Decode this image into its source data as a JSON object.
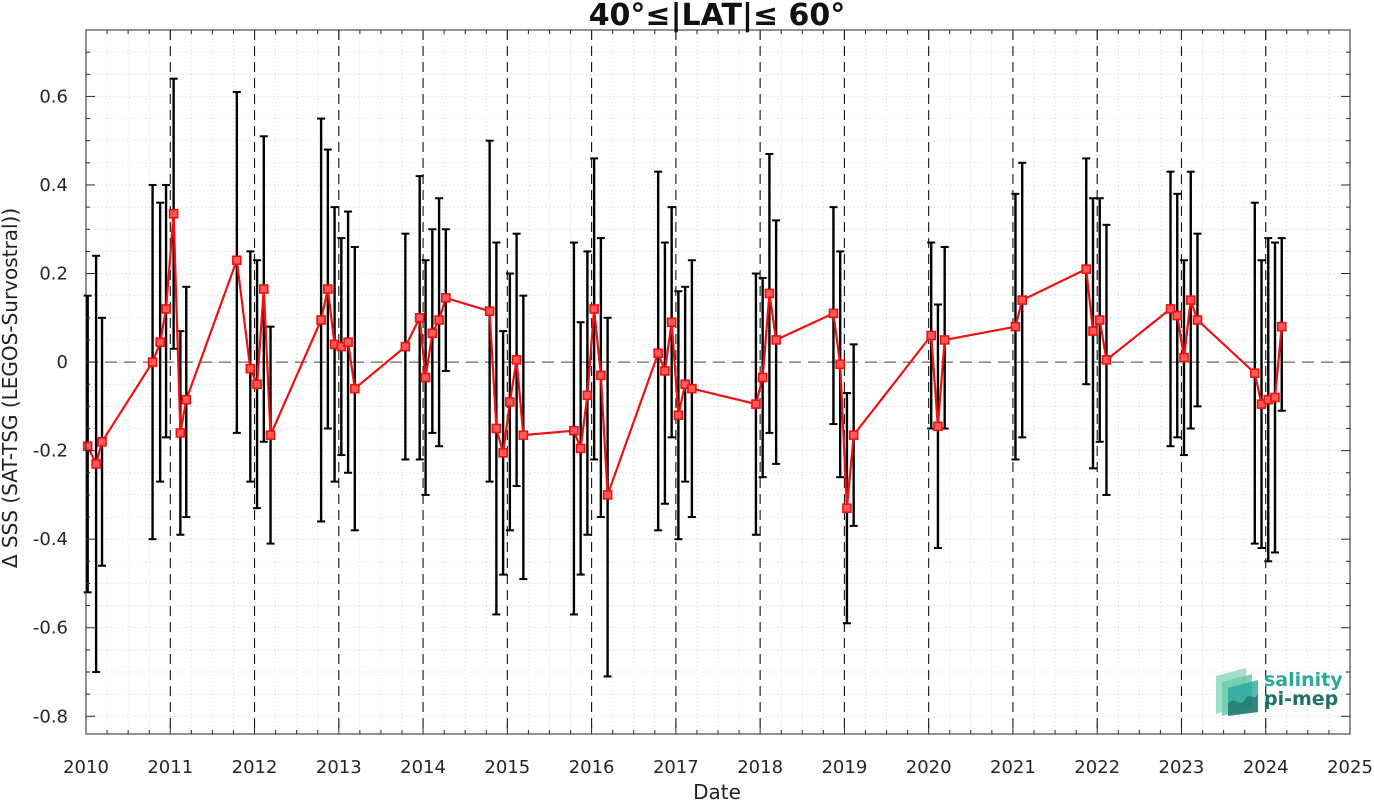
{
  "chart_data": {
    "type": "line",
    "title": "40°≤|LAT|≤ 60°",
    "xlabel": "Date",
    "ylabel": "Δ SSS (SAT-TSG (LEGOS-Survostral))",
    "xlim": [
      2010,
      2025
    ],
    "ylim": [
      -0.84,
      0.75
    ],
    "x_ticks": [
      "2010",
      "2011",
      "2012",
      "2013",
      "2014",
      "2015",
      "2016",
      "2017",
      "2018",
      "2019",
      "2020",
      "2021",
      "2022",
      "2023",
      "2024",
      "2025"
    ],
    "y_ticks": [
      "0.6",
      "0.4",
      "0.2",
      "0",
      "-0.2",
      "-0.4",
      "-0.6",
      "-0.8"
    ],
    "y_tick_values": [
      0.6,
      0.4,
      0.2,
      0,
      -0.2,
      -0.4,
      -0.6,
      -0.8
    ],
    "grid": true,
    "reference_line": 0,
    "year_boundaries": [
      2011,
      2012,
      2013,
      2014,
      2015,
      2016,
      2017,
      2018,
      2019,
      2020,
      2021,
      2022,
      2023,
      2024
    ],
    "series": [
      {
        "color": "#ee1111",
        "marker": "square",
        "points": [
          {
            "x": 2010.02,
            "y": -0.19,
            "low": -0.52,
            "high": 0.15
          },
          {
            "x": 2010.12,
            "y": -0.23,
            "low": -0.7,
            "high": 0.24
          },
          {
            "x": 2010.19,
            "y": -0.18,
            "low": -0.46,
            "high": 0.1
          },
          {
            "x": 2010.79,
            "y": 0.0,
            "low": -0.4,
            "high": 0.4
          },
          {
            "x": 2010.88,
            "y": 0.045,
            "low": -0.27,
            "high": 0.36
          },
          {
            "x": 2010.95,
            "y": 0.12,
            "low": -0.17,
            "high": 0.4
          },
          {
            "x": 2011.04,
            "y": 0.335,
            "low": 0.03,
            "high": 0.64
          },
          {
            "x": 2011.12,
            "y": -0.16,
            "low": -0.39,
            "high": 0.07
          },
          {
            "x": 2011.19,
            "y": -0.085,
            "low": -0.35,
            "high": 0.17
          },
          {
            "x": 2011.79,
            "y": 0.23,
            "low": -0.16,
            "high": 0.61
          },
          {
            "x": 2011.95,
            "y": -0.015,
            "low": -0.27,
            "high": 0.25
          },
          {
            "x": 2012.03,
            "y": -0.05,
            "low": -0.33,
            "high": 0.23
          },
          {
            "x": 2012.11,
            "y": 0.165,
            "low": -0.18,
            "high": 0.51
          },
          {
            "x": 2012.19,
            "y": -0.165,
            "low": -0.41,
            "high": 0.08
          },
          {
            "x": 2012.79,
            "y": 0.095,
            "low": -0.36,
            "high": 0.55
          },
          {
            "x": 2012.87,
            "y": 0.165,
            "low": -0.15,
            "high": 0.48
          },
          {
            "x": 2012.95,
            "y": 0.04,
            "low": -0.27,
            "high": 0.35
          },
          {
            "x": 2013.03,
            "y": 0.035,
            "low": -0.21,
            "high": 0.28
          },
          {
            "x": 2013.11,
            "y": 0.045,
            "low": -0.25,
            "high": 0.34
          },
          {
            "x": 2013.19,
            "y": -0.06,
            "low": -0.38,
            "high": 0.26
          },
          {
            "x": 2013.79,
            "y": 0.035,
            "low": -0.22,
            "high": 0.29
          },
          {
            "x": 2013.96,
            "y": 0.1,
            "low": -0.22,
            "high": 0.42
          },
          {
            "x": 2014.03,
            "y": -0.035,
            "low": -0.3,
            "high": 0.23
          },
          {
            "x": 2014.11,
            "y": 0.065,
            "low": -0.16,
            "high": 0.3
          },
          {
            "x": 2014.19,
            "y": 0.095,
            "low": -0.19,
            "high": 0.37
          },
          {
            "x": 2014.27,
            "y": 0.145,
            "low": -0.02,
            "high": 0.3
          },
          {
            "x": 2014.79,
            "y": 0.115,
            "low": -0.27,
            "high": 0.5
          },
          {
            "x": 2014.87,
            "y": -0.15,
            "low": -0.57,
            "high": 0.27
          },
          {
            "x": 2014.95,
            "y": -0.205,
            "low": -0.48,
            "high": 0.07
          },
          {
            "x": 2015.03,
            "y": -0.09,
            "low": -0.38,
            "high": 0.2
          },
          {
            "x": 2015.11,
            "y": 0.005,
            "low": -0.28,
            "high": 0.29
          },
          {
            "x": 2015.19,
            "y": -0.165,
            "low": -0.49,
            "high": 0.15
          },
          {
            "x": 2015.79,
            "y": -0.155,
            "low": -0.57,
            "high": 0.27
          },
          {
            "x": 2015.87,
            "y": -0.195,
            "low": -0.48,
            "high": 0.09
          },
          {
            "x": 2015.95,
            "y": -0.075,
            "low": -0.39,
            "high": 0.25
          },
          {
            "x": 2016.03,
            "y": 0.12,
            "low": -0.22,
            "high": 0.46
          },
          {
            "x": 2016.11,
            "y": -0.03,
            "low": -0.35,
            "high": 0.28
          },
          {
            "x": 2016.19,
            "y": -0.3,
            "low": -0.71,
            "high": 0.1
          },
          {
            "x": 2016.79,
            "y": 0.02,
            "low": -0.38,
            "high": 0.43
          },
          {
            "x": 2016.87,
            "y": -0.02,
            "low": -0.32,
            "high": 0.27
          },
          {
            "x": 2016.95,
            "y": 0.09,
            "low": -0.17,
            "high": 0.35
          },
          {
            "x": 2017.03,
            "y": -0.12,
            "low": -0.4,
            "high": 0.16
          },
          {
            "x": 2017.11,
            "y": -0.05,
            "low": -0.27,
            "high": 0.17
          },
          {
            "x": 2017.19,
            "y": -0.06,
            "low": -0.35,
            "high": 0.23
          },
          {
            "x": 2017.95,
            "y": -0.095,
            "low": -0.39,
            "high": 0.2
          },
          {
            "x": 2018.03,
            "y": -0.035,
            "low": -0.26,
            "high": 0.19
          },
          {
            "x": 2018.11,
            "y": 0.155,
            "low": -0.16,
            "high": 0.47
          },
          {
            "x": 2018.19,
            "y": 0.05,
            "low": -0.23,
            "high": 0.32
          },
          {
            "x": 2018.87,
            "y": 0.11,
            "low": -0.14,
            "high": 0.35
          },
          {
            "x": 2018.95,
            "y": -0.005,
            "low": -0.26,
            "high": 0.25
          },
          {
            "x": 2019.03,
            "y": -0.33,
            "low": -0.59,
            "high": -0.07
          },
          {
            "x": 2019.11,
            "y": -0.165,
            "low": -0.37,
            "high": 0.04
          },
          {
            "x": 2020.03,
            "y": 0.06,
            "low": -0.15,
            "high": 0.27
          },
          {
            "x": 2020.11,
            "y": -0.145,
            "low": -0.42,
            "high": 0.13
          },
          {
            "x": 2020.19,
            "y": 0.05,
            "low": -0.15,
            "high": 0.26
          },
          {
            "x": 2021.03,
            "y": 0.08,
            "low": -0.22,
            "high": 0.38
          },
          {
            "x": 2021.11,
            "y": 0.14,
            "low": -0.17,
            "high": 0.45
          },
          {
            "x": 2021.87,
            "y": 0.21,
            "low": -0.05,
            "high": 0.46
          },
          {
            "x": 2021.95,
            "y": 0.07,
            "low": -0.24,
            "high": 0.37
          },
          {
            "x": 2022.03,
            "y": 0.095,
            "low": -0.18,
            "high": 0.37
          },
          {
            "x": 2022.11,
            "y": 0.005,
            "low": -0.3,
            "high": 0.31
          },
          {
            "x": 2022.87,
            "y": 0.12,
            "low": -0.19,
            "high": 0.43
          },
          {
            "x": 2022.95,
            "y": 0.105,
            "low": -0.17,
            "high": 0.38
          },
          {
            "x": 2023.03,
            "y": 0.01,
            "low": -0.21,
            "high": 0.23
          },
          {
            "x": 2023.11,
            "y": 0.14,
            "low": -0.15,
            "high": 0.43
          },
          {
            "x": 2023.19,
            "y": 0.095,
            "low": -0.1,
            "high": 0.29
          },
          {
            "x": 2023.87,
            "y": -0.025,
            "low": -0.41,
            "high": 0.36
          },
          {
            "x": 2023.95,
            "y": -0.095,
            "low": -0.42,
            "high": 0.23
          },
          {
            "x": 2024.03,
            "y": -0.085,
            "low": -0.45,
            "high": 0.28
          },
          {
            "x": 2024.11,
            "y": -0.08,
            "low": -0.43,
            "high": 0.27
          },
          {
            "x": 2024.19,
            "y": 0.08,
            "low": -0.11,
            "high": 0.28
          }
        ]
      }
    ]
  },
  "logo": {
    "line1": "salinity",
    "line2": "pi-mep"
  }
}
